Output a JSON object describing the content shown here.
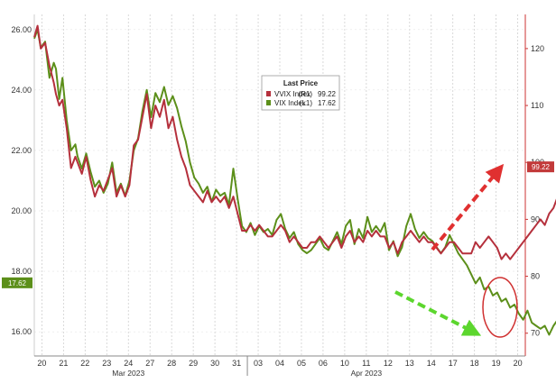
{
  "chart_data": {
    "type": "line",
    "legend": {
      "title": "Last Price",
      "placement": "top-center",
      "entries": [
        {
          "label": "VVIX Index",
          "axis_tag": "(R1)",
          "value": "99.22",
          "color": "#b5303c"
        },
        {
          "label": "VIX Index",
          "axis_tag": "(L1)",
          "value": "17.62",
          "color": "#5c8f1a"
        }
      ]
    },
    "left_axis": {
      "ticks": [
        16.0,
        18.0,
        20.0,
        22.0,
        24.0,
        26.0
      ],
      "tick_labels": [
        "16.00",
        "18.00",
        "20.00",
        "22.00",
        "24.00",
        "26.00"
      ],
      "range": [
        15.2,
        26.5
      ],
      "last_value_badge": "17.62",
      "badge_color": "#5c8f1a"
    },
    "right_axis": {
      "ticks": [
        70,
        80,
        90,
        100,
        110,
        120
      ],
      "tick_labels": [
        "70",
        "80",
        "90",
        "100",
        "110",
        "120"
      ],
      "range": [
        66,
        126
      ],
      "last_value_badge": "99.22",
      "badge_color": "#c23a3a"
    },
    "x_axis": {
      "day_labels": [
        "20",
        "21",
        "22",
        "23",
        "24",
        "27",
        "28",
        "29",
        "30",
        "31",
        "03",
        "04",
        "05",
        "06",
        "10",
        "11",
        "12",
        "13",
        "14",
        "17",
        "18",
        "19",
        "20"
      ],
      "month_labels": [
        {
          "label": "Mar 2023",
          "at_index": 4
        },
        {
          "label": "Apr 2023",
          "at_index": 15
        }
      ],
      "month_separator_index": 10,
      "grid": "vertical dotted"
    },
    "series": [
      {
        "name": "VIX Index",
        "axis": "left",
        "color": "#5c8f1a",
        "points": [
          [
            0,
            25.7
          ],
          [
            0.15,
            26.0
          ],
          [
            0.3,
            25.4
          ],
          [
            0.5,
            25.6
          ],
          [
            0.7,
            24.4
          ],
          [
            0.9,
            24.9
          ],
          [
            1.0,
            24.7
          ],
          [
            1.15,
            23.7
          ],
          [
            1.3,
            24.4
          ],
          [
            1.5,
            23.0
          ],
          [
            1.7,
            22.0
          ],
          [
            1.9,
            22.2
          ],
          [
            2.0,
            21.8
          ],
          [
            2.2,
            21.4
          ],
          [
            2.4,
            21.9
          ],
          [
            2.6,
            21.3
          ],
          [
            2.8,
            20.8
          ],
          [
            3.0,
            21.0
          ],
          [
            3.2,
            20.6
          ],
          [
            3.4,
            20.9
          ],
          [
            3.6,
            21.6
          ],
          [
            3.8,
            20.6
          ],
          [
            4.0,
            20.9
          ],
          [
            4.2,
            20.5
          ],
          [
            4.4,
            21.0
          ],
          [
            4.6,
            22.0
          ],
          [
            4.8,
            22.4
          ],
          [
            5.0,
            23.3
          ],
          [
            5.2,
            24.0
          ],
          [
            5.4,
            23.1
          ],
          [
            5.6,
            23.9
          ],
          [
            5.8,
            23.6
          ],
          [
            6.0,
            24.1
          ],
          [
            6.2,
            23.5
          ],
          [
            6.4,
            23.8
          ],
          [
            6.6,
            23.4
          ],
          [
            6.8,
            22.8
          ],
          [
            7.0,
            22.3
          ],
          [
            7.2,
            21.6
          ],
          [
            7.4,
            21.1
          ],
          [
            7.6,
            20.9
          ],
          [
            7.8,
            20.6
          ],
          [
            8.0,
            20.8
          ],
          [
            8.2,
            20.3
          ],
          [
            8.4,
            20.7
          ],
          [
            8.6,
            20.5
          ],
          [
            8.8,
            20.6
          ],
          [
            9.0,
            20.2
          ],
          [
            9.2,
            21.4
          ],
          [
            9.4,
            20.4
          ],
          [
            9.6,
            19.5
          ],
          [
            9.8,
            19.3
          ],
          [
            10.0,
            19.6
          ],
          [
            10.2,
            19.2
          ],
          [
            10.4,
            19.5
          ],
          [
            10.6,
            19.3
          ],
          [
            10.8,
            19.4
          ],
          [
            11.0,
            19.2
          ],
          [
            11.2,
            19.7
          ],
          [
            11.4,
            19.9
          ],
          [
            11.6,
            19.4
          ],
          [
            11.8,
            19.1
          ],
          [
            12.0,
            19.3
          ],
          [
            12.2,
            18.9
          ],
          [
            12.4,
            18.7
          ],
          [
            12.6,
            18.6
          ],
          [
            12.8,
            18.7
          ],
          [
            13.0,
            18.9
          ],
          [
            13.2,
            19.1
          ],
          [
            13.4,
            18.8
          ],
          [
            13.6,
            18.7
          ],
          [
            13.8,
            19.0
          ],
          [
            14.0,
            19.3
          ],
          [
            14.2,
            18.9
          ],
          [
            14.4,
            19.5
          ],
          [
            14.6,
            19.7
          ],
          [
            14.8,
            18.9
          ],
          [
            15.0,
            19.4
          ],
          [
            15.2,
            19.1
          ],
          [
            15.4,
            19.8
          ],
          [
            15.6,
            19.3
          ],
          [
            15.8,
            19.5
          ],
          [
            16.0,
            19.3
          ],
          [
            16.2,
            19.6
          ],
          [
            16.4,
            18.7
          ],
          [
            16.6,
            19.0
          ],
          [
            16.8,
            18.5
          ],
          [
            17.0,
            18.8
          ],
          [
            17.2,
            19.5
          ],
          [
            17.4,
            19.9
          ],
          [
            17.6,
            19.4
          ],
          [
            17.8,
            19.1
          ],
          [
            18.0,
            19.3
          ],
          [
            18.2,
            19.1
          ],
          [
            18.4,
            19.0
          ],
          [
            18.6,
            18.8
          ],
          [
            18.8,
            18.6
          ],
          [
            19.0,
            18.8
          ],
          [
            19.2,
            19.2
          ],
          [
            19.4,
            18.9
          ],
          [
            19.6,
            18.6
          ],
          [
            19.8,
            18.4
          ],
          [
            20.0,
            18.2
          ],
          [
            20.2,
            17.9
          ],
          [
            20.4,
            17.6
          ],
          [
            20.6,
            17.8
          ],
          [
            20.8,
            17.4
          ],
          [
            21.0,
            17.5
          ],
          [
            21.2,
            17.2
          ],
          [
            21.4,
            17.3
          ],
          [
            21.6,
            17.0
          ],
          [
            21.8,
            17.1
          ],
          [
            22.0,
            16.8
          ],
          [
            22.2,
            16.9
          ],
          [
            22.4,
            16.6
          ],
          [
            22.6,
            16.4
          ],
          [
            22.8,
            16.7
          ],
          [
            23.0,
            16.3
          ],
          [
            23.2,
            16.2
          ],
          [
            23.4,
            16.1
          ],
          [
            23.6,
            16.2
          ],
          [
            23.8,
            15.9
          ],
          [
            24.0,
            16.2
          ],
          [
            24.2,
            16.4
          ],
          [
            24.4,
            17.2
          ],
          [
            24.6,
            17.0
          ],
          [
            24.8,
            17.1
          ],
          [
            25.0,
            16.6
          ],
          [
            25.2,
            16.5
          ],
          [
            25.4,
            17.2
          ],
          [
            25.6,
            17.62
          ]
        ]
      },
      {
        "name": "VVIX Index",
        "axis": "right",
        "color": "#b5303c",
        "points": [
          [
            0,
            122
          ],
          [
            0.15,
            124
          ],
          [
            0.3,
            120
          ],
          [
            0.5,
            121
          ],
          [
            0.7,
            117
          ],
          [
            0.9,
            114
          ],
          [
            1.0,
            112
          ],
          [
            1.15,
            110
          ],
          [
            1.3,
            111
          ],
          [
            1.5,
            106
          ],
          [
            1.7,
            99
          ],
          [
            1.9,
            101
          ],
          [
            2.0,
            100
          ],
          [
            2.2,
            98
          ],
          [
            2.4,
            101
          ],
          [
            2.6,
            97
          ],
          [
            2.8,
            94
          ],
          [
            3.0,
            96
          ],
          [
            3.2,
            95
          ],
          [
            3.4,
            97
          ],
          [
            3.6,
            99
          ],
          [
            3.8,
            94
          ],
          [
            4.0,
            96
          ],
          [
            4.2,
            94
          ],
          [
            4.4,
            96
          ],
          [
            4.6,
            103
          ],
          [
            4.8,
            104
          ],
          [
            5.0,
            108
          ],
          [
            5.2,
            112
          ],
          [
            5.4,
            106
          ],
          [
            5.6,
            110
          ],
          [
            5.8,
            108
          ],
          [
            6.0,
            111
          ],
          [
            6.2,
            106
          ],
          [
            6.4,
            108
          ],
          [
            6.6,
            104
          ],
          [
            6.8,
            101
          ],
          [
            7.0,
            99
          ],
          [
            7.2,
            96
          ],
          [
            7.4,
            95
          ],
          [
            7.6,
            94
          ],
          [
            7.8,
            93
          ],
          [
            8.0,
            95
          ],
          [
            8.2,
            93
          ],
          [
            8.4,
            94
          ],
          [
            8.6,
            93
          ],
          [
            8.8,
            94
          ],
          [
            9.0,
            92
          ],
          [
            9.2,
            94
          ],
          [
            9.4,
            91
          ],
          [
            9.6,
            88
          ],
          [
            9.8,
            88
          ],
          [
            10.0,
            89
          ],
          [
            10.2,
            88
          ],
          [
            10.4,
            89
          ],
          [
            10.6,
            88
          ],
          [
            10.8,
            87
          ],
          [
            11.0,
            87
          ],
          [
            11.2,
            88
          ],
          [
            11.4,
            89
          ],
          [
            11.6,
            88
          ],
          [
            11.8,
            86
          ],
          [
            12.0,
            87
          ],
          [
            12.2,
            86
          ],
          [
            12.4,
            85
          ],
          [
            12.6,
            85
          ],
          [
            12.8,
            86
          ],
          [
            13.0,
            86
          ],
          [
            13.2,
            87
          ],
          [
            13.4,
            86
          ],
          [
            13.6,
            85
          ],
          [
            13.8,
            86
          ],
          [
            14.0,
            87
          ],
          [
            14.2,
            85
          ],
          [
            14.4,
            87
          ],
          [
            14.6,
            88
          ],
          [
            14.8,
            86
          ],
          [
            15.0,
            87
          ],
          [
            15.2,
            86
          ],
          [
            15.4,
            88
          ],
          [
            15.6,
            87
          ],
          [
            15.8,
            88
          ],
          [
            16.0,
            87
          ],
          [
            16.2,
            87
          ],
          [
            16.4,
            85
          ],
          [
            16.6,
            86
          ],
          [
            16.8,
            84
          ],
          [
            17.0,
            86
          ],
          [
            17.2,
            87
          ],
          [
            17.4,
            88
          ],
          [
            17.6,
            87
          ],
          [
            17.8,
            86
          ],
          [
            18.0,
            87
          ],
          [
            18.2,
            86
          ],
          [
            18.4,
            86
          ],
          [
            18.6,
            85
          ],
          [
            18.8,
            84
          ],
          [
            19.0,
            85
          ],
          [
            19.2,
            86
          ],
          [
            19.4,
            86
          ],
          [
            19.6,
            85
          ],
          [
            19.8,
            84
          ],
          [
            20.0,
            84
          ],
          [
            20.2,
            84
          ],
          [
            20.4,
            86
          ],
          [
            20.6,
            85
          ],
          [
            20.8,
            86
          ],
          [
            21.0,
            87
          ],
          [
            21.2,
            86
          ],
          [
            21.4,
            85
          ],
          [
            21.6,
            83
          ],
          [
            21.8,
            84
          ],
          [
            22.0,
            83
          ],
          [
            22.2,
            84
          ],
          [
            22.4,
            85
          ],
          [
            22.6,
            86
          ],
          [
            22.8,
            87
          ],
          [
            23.0,
            88
          ],
          [
            23.2,
            89
          ],
          [
            23.4,
            90
          ],
          [
            23.6,
            89
          ],
          [
            23.8,
            91
          ],
          [
            24.0,
            92
          ],
          [
            24.2,
            94
          ],
          [
            24.4,
            93
          ],
          [
            24.6,
            95
          ],
          [
            24.8,
            97
          ],
          [
            25.0,
            96
          ],
          [
            25.2,
            97
          ],
          [
            25.4,
            98
          ],
          [
            25.6,
            99.22
          ]
        ]
      }
    ],
    "annotations": [
      {
        "type": "dashed-arrow",
        "color": "#e03030",
        "description": "upward arrow along VVIX"
      },
      {
        "type": "dashed-arrow",
        "color": "#5cd62e",
        "description": "downward arrow along VIX"
      },
      {
        "type": "ellipse",
        "color": "#d03030",
        "description": "circle around final VIX rebound"
      }
    ]
  }
}
